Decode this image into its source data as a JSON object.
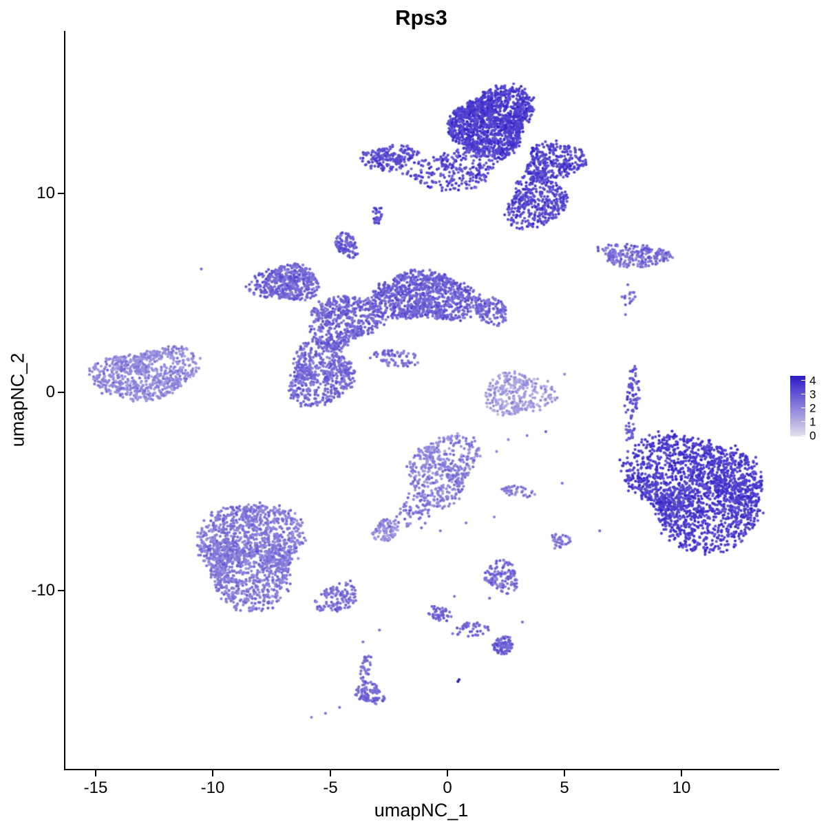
{
  "title": "Rps3",
  "axes": {
    "x": {
      "label": "umapNC_1",
      "ticks": [
        -15,
        -10,
        -5,
        0,
        5,
        10
      ]
    },
    "y": {
      "label": "umapNC_2",
      "ticks": [
        10,
        0,
        -10
      ]
    }
  },
  "legend": {
    "labels": [
      "4",
      "3",
      "2",
      "1",
      "0"
    ],
    "color_high": "#2B1BC7",
    "color_low": "#E3E0ED"
  },
  "chart_data": {
    "type": "scatter",
    "title": "Rps3",
    "xlabel": "umapNC_1",
    "ylabel": "umapNC_2",
    "xlim": [
      -16.3,
      14.1
    ],
    "ylim": [
      -19.0,
      18.2
    ],
    "x_ticks": [
      -15,
      -10,
      -5,
      0,
      5,
      10
    ],
    "y_ticks": [
      10,
      0,
      -10
    ],
    "grid": false,
    "legend_position": "right",
    "color_scale": {
      "low": "#E3E0ED",
      "high": "#2B1BC7",
      "domain": [
        0,
        4
      ],
      "breaks": [
        0,
        1,
        2,
        3,
        4
      ]
    },
    "point_radius": 2.1,
    "clusters": [
      {
        "name": "top-main-head",
        "cx": 1.9,
        "cy": 13.6,
        "rx": 1.8,
        "ry": 1.6,
        "n": 1500,
        "expr": 3.3,
        "sd": 0.45
      },
      {
        "name": "top-left-arm",
        "cx": -2.5,
        "cy": 11.8,
        "rx": 1.2,
        "ry": 0.6,
        "n": 200,
        "expr": 3.0,
        "sd": 0.5
      },
      {
        "name": "top-mid-scatter",
        "cx": 0.3,
        "cy": 11.2,
        "rx": 2.0,
        "ry": 1.0,
        "n": 260,
        "expr": 3.0,
        "sd": 0.6
      },
      {
        "name": "top-right-blob",
        "cx": 4.6,
        "cy": 11.6,
        "rx": 1.4,
        "ry": 0.9,
        "n": 320,
        "expr": 3.2,
        "sd": 0.5
      },
      {
        "name": "top-right-lower",
        "cx": 3.8,
        "cy": 9.6,
        "rx": 1.4,
        "ry": 1.2,
        "n": 380,
        "expr": 3.1,
        "sd": 0.5
      },
      {
        "name": "top-hanging-strand",
        "cx": -3.0,
        "cy": 8.9,
        "rx": 0.18,
        "ry": 0.55,
        "n": 28,
        "expr": 3.0,
        "sd": 0.4
      },
      {
        "name": "right-upper-strip",
        "cx": 8.0,
        "cy": 6.9,
        "rx": 1.7,
        "ry": 0.5,
        "n": 230,
        "expr": 2.3,
        "sd": 0.6
      },
      {
        "name": "right-upper-dots",
        "cx": 7.7,
        "cy": 4.9,
        "rx": 0.35,
        "ry": 0.45,
        "n": 16,
        "expr": 2.4,
        "sd": 0.4
      },
      {
        "name": "central-right-lobe",
        "cx": -1.0,
        "cy": 4.8,
        "rx": 2.0,
        "ry": 1.4,
        "n": 950,
        "expr": 2.6,
        "sd": 0.5
      },
      {
        "name": "central-right-tip",
        "cx": 1.9,
        "cy": 4.1,
        "rx": 0.8,
        "ry": 0.6,
        "n": 130,
        "expr": 2.5,
        "sd": 0.5
      },
      {
        "name": "central-top-knob",
        "cx": -4.3,
        "cy": 7.4,
        "rx": 0.5,
        "ry": 0.6,
        "n": 100,
        "expr": 2.7,
        "sd": 0.5
      },
      {
        "name": "central-left-lobe",
        "cx": -6.9,
        "cy": 5.5,
        "rx": 1.3,
        "ry": 1.0,
        "n": 480,
        "expr": 2.5,
        "sd": 0.5
      },
      {
        "name": "central-mid",
        "cx": -4.4,
        "cy": 3.6,
        "rx": 1.4,
        "ry": 1.4,
        "n": 520,
        "expr": 2.5,
        "sd": 0.5
      },
      {
        "name": "central-lower-lobe",
        "cx": -5.4,
        "cy": 0.9,
        "rx": 1.6,
        "ry": 1.4,
        "n": 580,
        "expr": 2.4,
        "sd": 0.5
      },
      {
        "name": "central-diag-strand",
        "cx": -2.2,
        "cy": 1.7,
        "rx": 1.1,
        "ry": 0.4,
        "n": 80,
        "expr": 2.3,
        "sd": 0.5
      },
      {
        "name": "left-cluster",
        "cx": -12.9,
        "cy": 0.9,
        "rx": 2.0,
        "ry": 1.4,
        "n": 750,
        "expr": 1.8,
        "sd": 0.5
      },
      {
        "name": "mid-light-cluster",
        "cx": 3.0,
        "cy": -0.1,
        "rx": 1.3,
        "ry": 1.2,
        "n": 300,
        "expr": 1.4,
        "sd": 0.5
      },
      {
        "name": "right-thin-strand",
        "cx": 7.9,
        "cy": -0.1,
        "rx": 0.28,
        "ry": 1.3,
        "n": 70,
        "expr": 2.8,
        "sd": 0.5
      },
      {
        "name": "right-thin-strand-2",
        "cx": 7.8,
        "cy": -2.0,
        "rx": 0.22,
        "ry": 0.55,
        "n": 26,
        "expr": 2.7,
        "sd": 0.5
      },
      {
        "name": "right-main-cluster",
        "cx": 10.7,
        "cy": -4.9,
        "rx": 3.0,
        "ry": 2.6,
        "n": 2000,
        "expr": 3.3,
        "sd": 0.45
      },
      {
        "name": "bottom-center-cluster",
        "cx": -0.2,
        "cy": -3.9,
        "rx": 1.5,
        "ry": 1.7,
        "n": 470,
        "expr": 1.9,
        "sd": 0.55
      },
      {
        "name": "bottom-center-tail",
        "cx": -1.4,
        "cy": -6.0,
        "rx": 0.8,
        "ry": 0.9,
        "n": 70,
        "expr": 2.1,
        "sd": 0.5
      },
      {
        "name": "bottom-tail-blob",
        "cx": -2.6,
        "cy": -7.0,
        "rx": 0.6,
        "ry": 0.5,
        "n": 100,
        "expr": 1.8,
        "sd": 0.5
      },
      {
        "name": "small-right-strip",
        "cx": 3.0,
        "cy": -5.0,
        "rx": 0.7,
        "ry": 0.3,
        "n": 40,
        "expr": 2.1,
        "sd": 0.5
      },
      {
        "name": "bottom-left-cluster",
        "cx": -8.4,
        "cy": -8.1,
        "rx": 2.4,
        "ry": 2.3,
        "n": 1600,
        "expr": 2.1,
        "sd": 0.5
      },
      {
        "name": "bottom-left-tail",
        "cx": -4.7,
        "cy": -10.4,
        "rx": 0.8,
        "ry": 0.8,
        "n": 130,
        "expr": 2.3,
        "sd": 0.5
      },
      {
        "name": "small-bottom-cluster",
        "cx": 2.3,
        "cy": -9.3,
        "rx": 0.8,
        "ry": 0.7,
        "n": 130,
        "expr": 2.3,
        "sd": 0.5
      },
      {
        "name": "tiny-blob-right",
        "cx": 4.8,
        "cy": -7.5,
        "rx": 0.4,
        "ry": 0.4,
        "n": 35,
        "expr": 2.2,
        "sd": 0.5
      },
      {
        "name": "bottom-strand-a",
        "cx": -0.3,
        "cy": -11.2,
        "rx": 0.5,
        "ry": 0.4,
        "n": 45,
        "expr": 2.5,
        "sd": 0.4
      },
      {
        "name": "bottom-strand-b",
        "cx": 1.0,
        "cy": -12.0,
        "rx": 0.7,
        "ry": 0.4,
        "n": 45,
        "expr": 2.5,
        "sd": 0.4
      },
      {
        "name": "bottom-strand-blob",
        "cx": 2.4,
        "cy": -12.8,
        "rx": 0.55,
        "ry": 0.4,
        "n": 85,
        "expr": 2.6,
        "sd": 0.4
      },
      {
        "name": "bottom-small-strand",
        "cx": -3.5,
        "cy": -13.9,
        "rx": 0.22,
        "ry": 0.85,
        "n": 40,
        "expr": 2.3,
        "sd": 0.4
      },
      {
        "name": "bottom-small-blob",
        "cx": -3.3,
        "cy": -15.2,
        "rx": 0.55,
        "ry": 0.55,
        "n": 95,
        "expr": 2.4,
        "sd": 0.4
      }
    ],
    "singles": [
      [
        -10.5,
        6.2,
        2.5
      ],
      [
        7.6,
        3.9,
        2.3
      ],
      [
        4.2,
        -2.0,
        2.6
      ],
      [
        2.6,
        -2.4,
        1.8
      ],
      [
        3.4,
        -2.2,
        2.0
      ],
      [
        8.3,
        -2.4,
        3.0
      ],
      [
        8.6,
        -3.6,
        3.0
      ],
      [
        9.0,
        -2.0,
        3.2
      ],
      [
        0.5,
        -14.5,
        4.0
      ],
      [
        0.45,
        -14.6,
        4.0
      ],
      [
        -4.6,
        -15.9,
        2.2
      ],
      [
        -5.8,
        -16.4,
        2.0
      ],
      [
        -5.2,
        -16.2,
        2.1
      ],
      [
        1.8,
        -10.4,
        2.4
      ],
      [
        0.3,
        -10.3,
        2.2
      ],
      [
        -3.6,
        -12.6,
        2.2
      ],
      [
        5.0,
        0.9,
        1.8
      ],
      [
        4.6,
        -0.4,
        1.6
      ],
      [
        2.0,
        -6.3,
        2.0
      ],
      [
        0.8,
        -6.6,
        2.1
      ],
      [
        -0.3,
        -7.0,
        2.0
      ],
      [
        8.0,
        1.3,
        2.6
      ],
      [
        7.7,
        -3.0,
        2.8
      ],
      [
        4.9,
        -4.6,
        2.3
      ],
      [
        6.5,
        -7.0,
        2.4
      ],
      [
        -2.9,
        -12.0,
        2.2
      ],
      [
        3.2,
        -11.6,
        2.4
      ],
      [
        2.1,
        -3.0,
        1.7
      ]
    ]
  }
}
